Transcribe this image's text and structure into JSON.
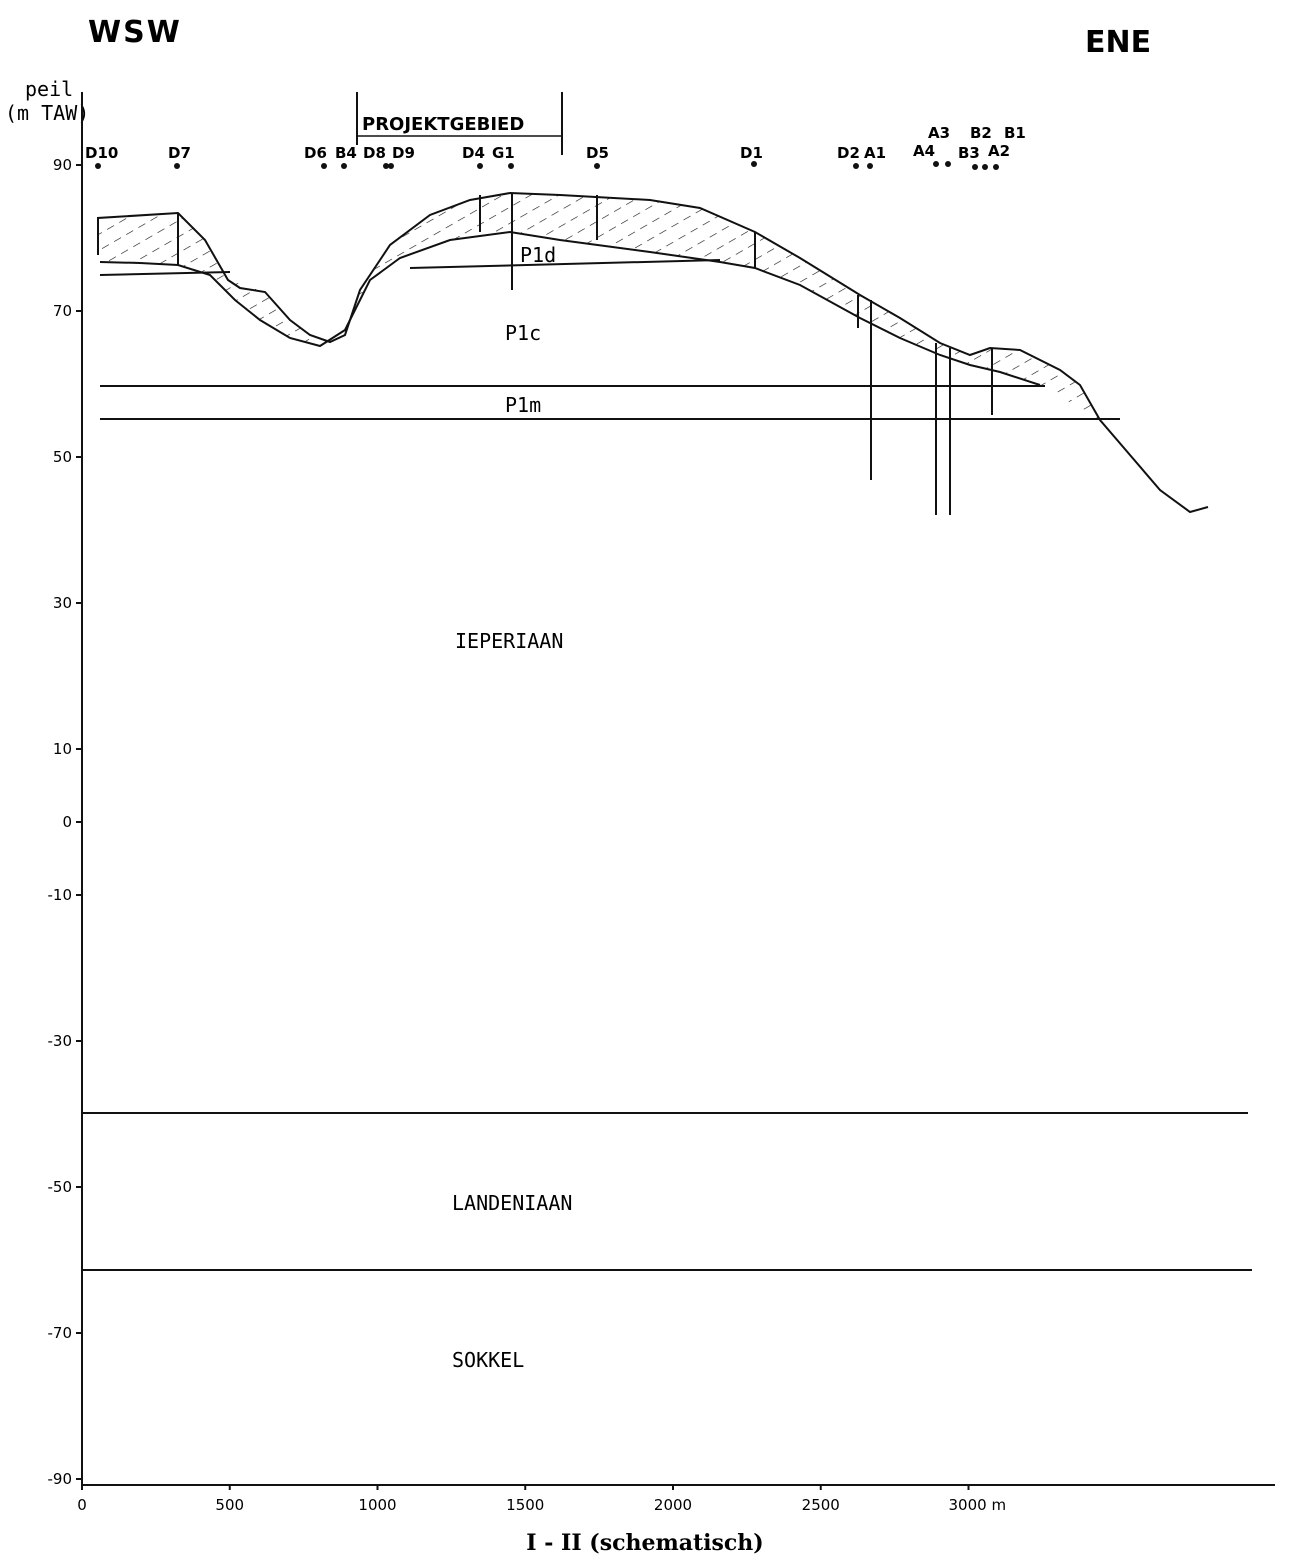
{
  "header": {
    "left": "WSW",
    "right": "ENE"
  },
  "y_axis": {
    "label_line1": "peil",
    "label_line2": "(m TAW)",
    "ticks": [
      90,
      70,
      50,
      30,
      10,
      0,
      -10,
      -30,
      -50,
      -70,
      -90
    ]
  },
  "x_axis": {
    "ticks": [
      0,
      500,
      1000,
      1500,
      2000,
      2500,
      {
        "value": 3000,
        "label": "3000 m"
      }
    ]
  },
  "project_area": "PROJEKTGEBIED",
  "boreholes": [
    "D10",
    "D7",
    "D6",
    "B4",
    "D8",
    "D9",
    "D4",
    "G1",
    "D5",
    "D1",
    "D2",
    "A1",
    "A3",
    "A4",
    "B2",
    "B1",
    "B3",
    "A2"
  ],
  "layers": [
    "P1d",
    "P1c",
    "P1m",
    "IEPERIAAN",
    "LANDENIAAN",
    "SOKKEL"
  ],
  "caption": "I - II (schematisch)"
}
